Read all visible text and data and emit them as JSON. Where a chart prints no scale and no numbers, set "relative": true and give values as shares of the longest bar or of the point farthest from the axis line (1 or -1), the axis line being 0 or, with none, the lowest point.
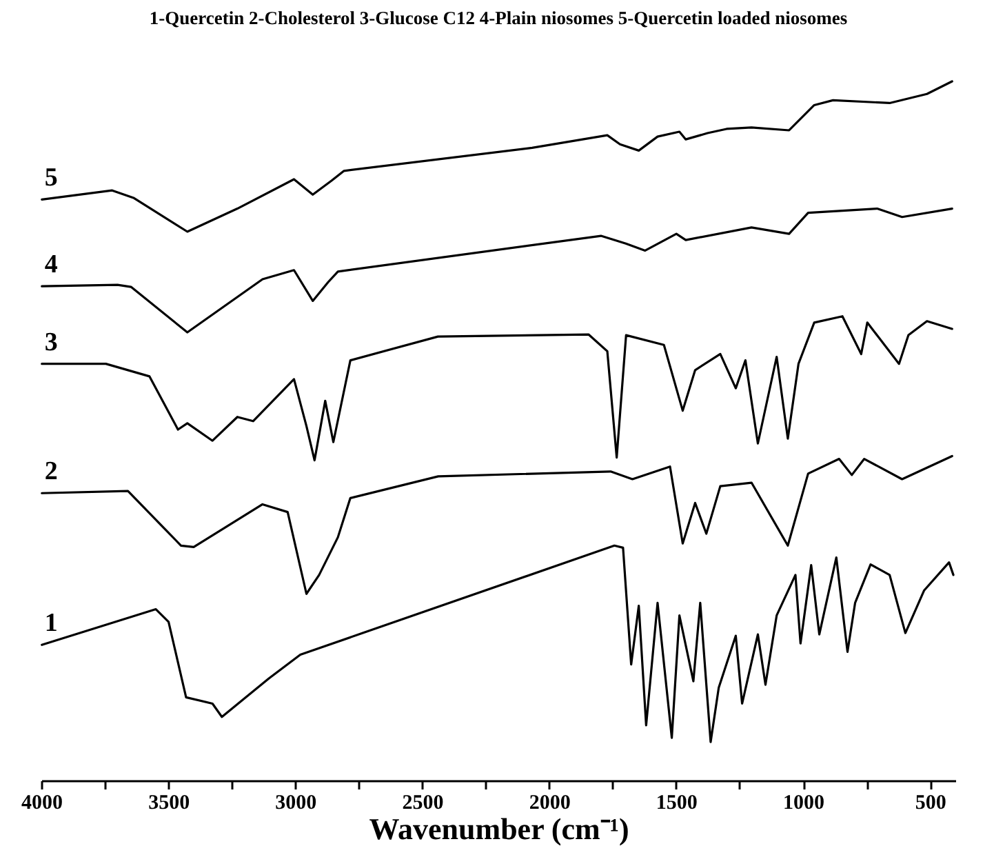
{
  "chart_data": {
    "type": "line",
    "title": "1-Quercetin   2-Cholesterol   3-Glucose C12   4-Plain niosomes   5-Quercetin loaded niosomes",
    "xlabel": "Wavenumber (cm⁻¹)",
    "relative": true,
    "grid": false,
    "legend": false,
    "marker": "none",
    "line_style": "solid",
    "xlim": [
      4000,
      400
    ],
    "xticks": [
      4000,
      {
        "value": 3750,
        "label": null
      },
      3500,
      {
        "value": 3250,
        "label": null
      },
      3000,
      {
        "value": 2750,
        "label": null
      },
      2500,
      {
        "value": 2250,
        "label": null
      },
      2000,
      {
        "value": 1750,
        "label": null
      },
      1500,
      {
        "value": 1250,
        "label": null
      },
      1000,
      {
        "value": 750,
        "label": null
      },
      500
    ],
    "series": [
      {
        "name": "5",
        "color": "#000000",
        "x": [
          3998,
          3721,
          3635,
          3425,
          3228,
          3005,
          2931,
          2857,
          2808,
          2067,
          1771,
          1721,
          1647,
          1573,
          1487,
          1462,
          1376,
          1301,
          1203,
          1055,
          956,
          882,
          659,
          512,
          413
        ],
        "values": [
          0.831,
          0.844,
          0.833,
          0.785,
          0.818,
          0.86,
          0.838,
          0.858,
          0.872,
          0.905,
          0.923,
          0.91,
          0.901,
          0.921,
          0.928,
          0.917,
          0.926,
          0.932,
          0.934,
          0.93,
          0.966,
          0.973,
          0.969,
          0.982,
          1
        ]
      },
      {
        "name": "4",
        "color": "#000000",
        "x": [
          3998,
          3700,
          3647,
          3425,
          3129,
          3005,
          2931,
          2870,
          2832,
          1796,
          1698,
          1622,
          1499,
          1462,
          1203,
          1055,
          980,
          708,
          610,
          413
        ],
        "values": [
          0.707,
          0.709,
          0.706,
          0.641,
          0.717,
          0.73,
          0.686,
          0.713,
          0.728,
          0.779,
          0.768,
          0.758,
          0.782,
          0.773,
          0.791,
          0.782,
          0.812,
          0.818,
          0.806,
          0.818
        ]
      },
      {
        "name": "3",
        "color": "#000000",
        "x": [
          3998,
          3746,
          3574,
          3462,
          3425,
          3326,
          3228,
          3166,
          3005,
          2956,
          2924,
          2882,
          2850,
          2783,
          2438,
          1845,
          1771,
          1734,
          1697,
          1548,
          1474,
          1425,
          1326,
          1265,
          1227,
          1178,
          1104,
          1060,
          1018,
          956,
          845,
          771,
          747,
          622,
          585,
          512,
          413
        ],
        "values": [
          0.596,
          0.596,
          0.578,
          0.502,
          0.511,
          0.486,
          0.52,
          0.514,
          0.574,
          0.507,
          0.458,
          0.543,
          0.484,
          0.601,
          0.635,
          0.638,
          0.614,
          0.462,
          0.637,
          0.623,
          0.529,
          0.587,
          0.61,
          0.561,
          0.601,
          0.482,
          0.606,
          0.489,
          0.596,
          0.655,
          0.664,
          0.61,
          0.655,
          0.596,
          0.637,
          0.657,
          0.646
        ]
      },
      {
        "name": "2",
        "color": "#000000",
        "x": [
          3998,
          3659,
          3450,
          3400,
          3129,
          3030,
          2956,
          2906,
          2832,
          2783,
          2437,
          1758,
          1672,
          1524,
          1474,
          1425,
          1381,
          1326,
          1203,
          1060,
          980,
          858,
          808,
          759,
          610,
          413
        ],
        "values": [
          0.411,
          0.414,
          0.336,
          0.334,
          0.395,
          0.384,
          0.267,
          0.294,
          0.348,
          0.404,
          0.435,
          0.442,
          0.431,
          0.449,
          0.339,
          0.397,
          0.353,
          0.421,
          0.426,
          0.336,
          0.439,
          0.46,
          0.437,
          0.46,
          0.431,
          0.464
        ]
      },
      {
        "name": "1",
        "color": "#000000",
        "x": [
          3998,
          3549,
          3499,
          3430,
          3326,
          3289,
          3104,
          2980,
          2734,
          1743,
          1709,
          1677,
          1647,
          1618,
          1573,
          1517,
          1487,
          1432,
          1405,
          1364,
          1332,
          1265,
          1240,
          1178,
          1148,
          1104,
          1030,
          1010,
          968,
          936,
          869,
          825,
          795,
          734,
          659,
          597,
          523,
          425,
          408
        ],
        "values": [
          0.194,
          0.245,
          0.227,
          0.119,
          0.11,
          0.091,
          0.146,
          0.18,
          0.211,
          0.336,
          0.333,
          0.166,
          0.25,
          0.079,
          0.254,
          0.061,
          0.236,
          0.142,
          0.254,
          0.055,
          0.133,
          0.207,
          0.11,
          0.209,
          0.137,
          0.236,
          0.294,
          0.196,
          0.308,
          0.209,
          0.319,
          0.184,
          0.254,
          0.309,
          0.294,
          0.211,
          0.272,
          0.312,
          0.294
        ]
      }
    ]
  }
}
